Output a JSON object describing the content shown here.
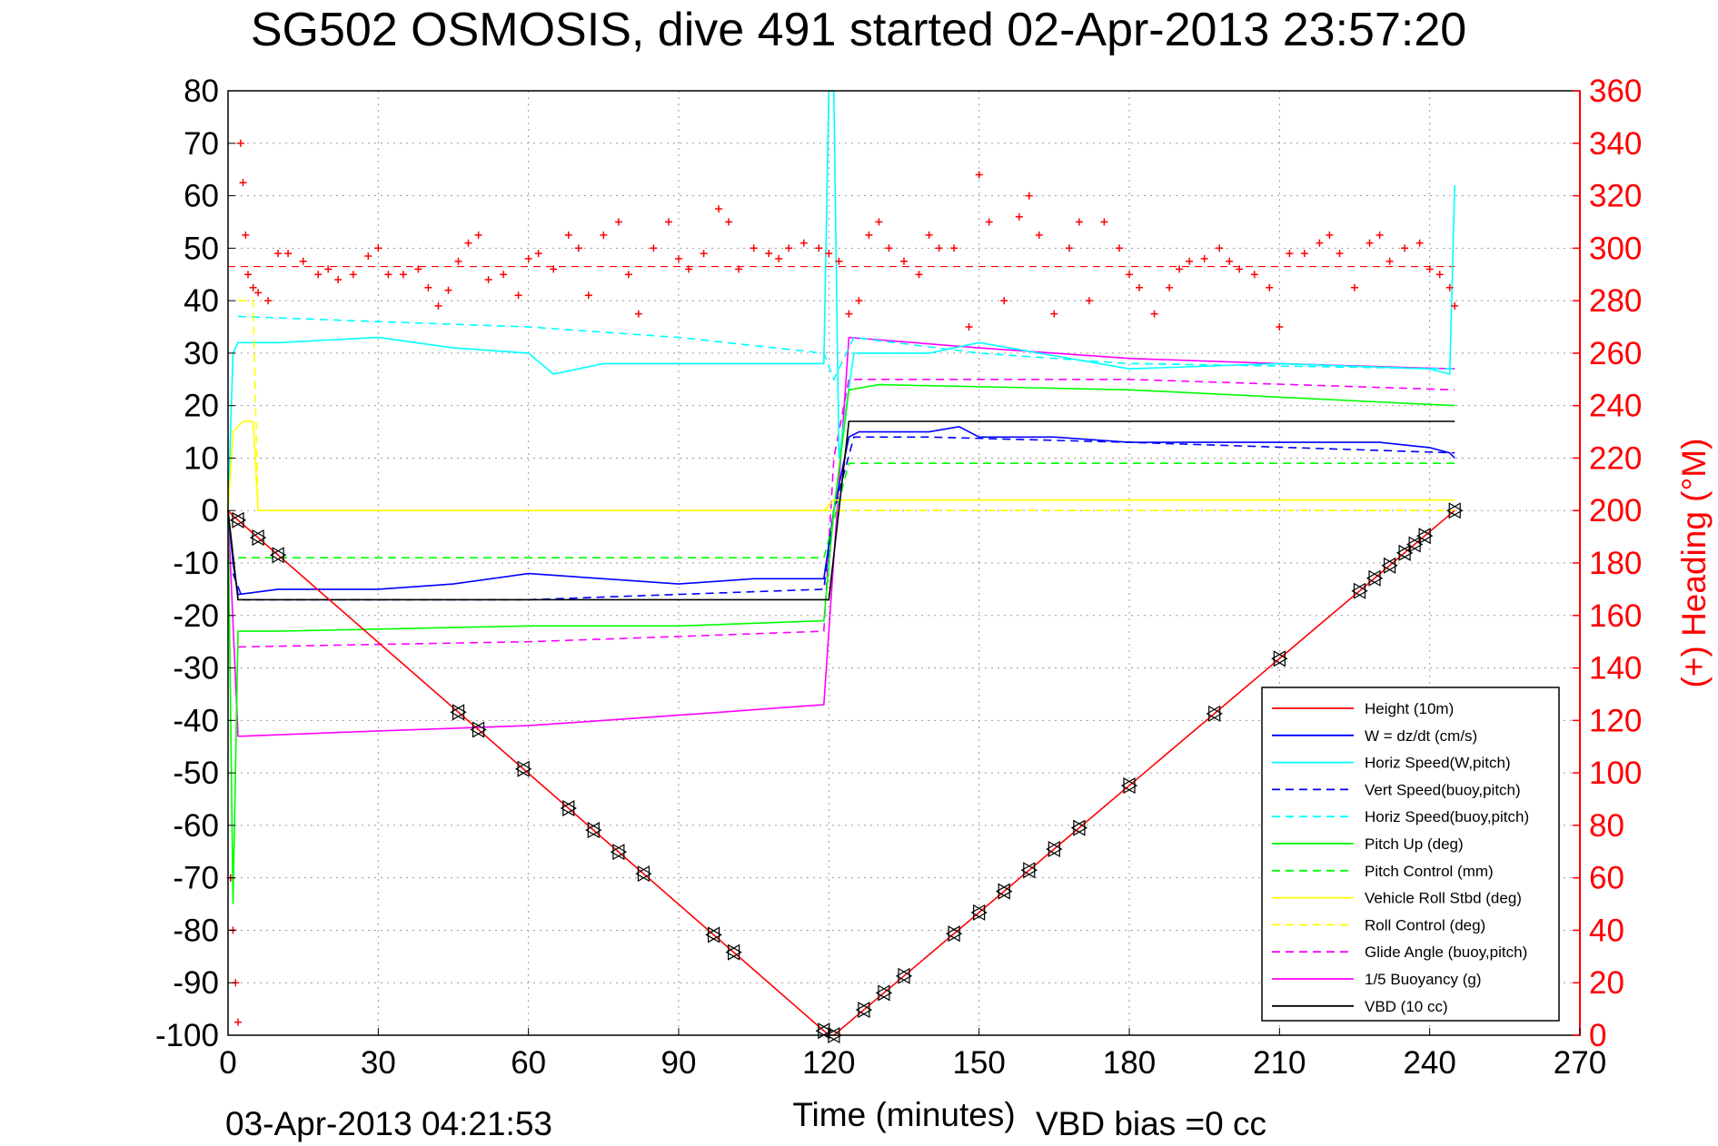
{
  "chart_data": {
    "type": "line",
    "title": "SG502 OSMOSIS, dive 491 started 02-Apr-2013 23:57:20",
    "xlabel": "Time (minutes)",
    "ylabel": "",
    "y2label": "(+) Heading (°M)",
    "footer_left": "03-Apr-2013 04:21:53",
    "footer_right": "VBD bias =0 cc",
    "xlim": [
      0,
      270
    ],
    "ylim": [
      -100,
      80
    ],
    "y2lim": [
      0,
      360
    ],
    "xticks": [
      "0",
      "30",
      "60",
      "90",
      "120",
      "150",
      "180",
      "210",
      "240",
      "270"
    ],
    "yticks": [
      "80",
      "70",
      "60",
      "50",
      "40",
      "30",
      "20",
      "10",
      "0",
      "-10",
      "-20",
      "-30",
      "-40",
      "-50",
      "-60",
      "-70",
      "-80",
      "-90",
      "-100"
    ],
    "y2ticks": [
      "360",
      "340",
      "320",
      "300",
      "280",
      "260",
      "240",
      "220",
      "200",
      "180",
      "160",
      "140",
      "120",
      "100",
      "80",
      "60",
      "40",
      "20",
      "0"
    ],
    "grid": true,
    "legend_position": "bottom-right",
    "colors": {
      "red": "#ff0000",
      "blue": "#0000ff",
      "cyan": "#00ffff",
      "green": "#00ff00",
      "yellow": "#ffff00",
      "magenta": "#ff00ff",
      "black": "#000000"
    },
    "series": [
      {
        "name": "Height (10m)",
        "color": "#ff0000",
        "style": "solid",
        "x": [
          0,
          1,
          120,
          121,
          245
        ],
        "y": [
          0,
          -1,
          -100,
          -100,
          0
        ]
      },
      {
        "name": "W = dz/dt (cm/s)",
        "color": "#0000ff",
        "style": "solid",
        "x": [
          0,
          1,
          2,
          10,
          30,
          45,
          60,
          75,
          90,
          105,
          119,
          121,
          124,
          126,
          140,
          146,
          150,
          165,
          180,
          210,
          230,
          240,
          244,
          245
        ],
        "y": [
          0,
          -10,
          -16,
          -15,
          -15,
          -14,
          -12,
          -13,
          -14,
          -13,
          -13,
          0,
          14,
          15,
          15,
          16,
          14,
          14,
          13,
          13,
          13,
          12,
          11,
          10
        ]
      },
      {
        "name": "Horiz Speed(W,pitch)",
        "color": "#00ffff",
        "style": "solid",
        "x": [
          0,
          1,
          2,
          10,
          30,
          45,
          60,
          65,
          75,
          90,
          105,
          119,
          120,
          121,
          122,
          125,
          140,
          150,
          180,
          210,
          240,
          244,
          245
        ],
        "y": [
          0,
          30,
          32,
          32,
          33,
          31,
          30,
          26,
          28,
          28,
          28,
          28,
          80,
          80,
          10,
          30,
          30,
          32,
          27,
          28,
          27,
          26,
          62
        ]
      },
      {
        "name": "Vert Speed(buoy,pitch)",
        "color": "#0000ff",
        "style": "dashed",
        "x": [
          1,
          3,
          60,
          119,
          121,
          125,
          140,
          180,
          245
        ],
        "y": [
          -12,
          -17,
          -17,
          -15,
          0,
          14,
          14,
          13,
          11
        ]
      },
      {
        "name": "Horiz Speed(buoy,pitch)",
        "color": "#00ffff",
        "style": "dashed",
        "x": [
          2,
          30,
          60,
          90,
          119,
          121,
          125,
          150,
          180,
          245
        ],
        "y": [
          37,
          36,
          35,
          33,
          30,
          25,
          33,
          30,
          28,
          27
        ]
      },
      {
        "name": "Pitch Up (deg)",
        "color": "#00ff00",
        "style": "solid",
        "x": [
          0,
          1,
          2,
          10,
          60,
          90,
          119,
          121,
          124,
          130,
          180,
          245
        ],
        "y": [
          0,
          -75,
          -23,
          -23,
          -22,
          -22,
          -21,
          0,
          23,
          24,
          23,
          20
        ]
      },
      {
        "name": "Pitch Control (mm)",
        "color": "#00ff00",
        "style": "dashed",
        "x": [
          2,
          119,
          119,
          124,
          124,
          245
        ],
        "y": [
          -9,
          -9,
          -9,
          9,
          9,
          9
        ]
      },
      {
        "name": "Vehicle Roll Stbd (deg)",
        "color": "#ffff00",
        "style": "solid",
        "x": [
          0,
          1,
          3,
          5,
          6,
          60,
          119,
          121,
          124,
          245
        ],
        "y": [
          0,
          15,
          17,
          17,
          0,
          0,
          0,
          2,
          2,
          2
        ]
      },
      {
        "name": "Roll Control (deg)",
        "color": "#ffff00",
        "style": "dashed",
        "x": [
          2,
          5,
          6,
          245
        ],
        "y": [
          40,
          40,
          0,
          0
        ]
      },
      {
        "name": "Glide Angle (buoy,pitch)",
        "color": "#ff00ff",
        "style": "dashed",
        "x": [
          2,
          60,
          90,
          119,
          121,
          124,
          180,
          245
        ],
        "y": [
          -26,
          -25,
          -24,
          -23,
          10,
          25,
          25,
          23
        ]
      },
      {
        "name": "1/5 Buoyancy (g)",
        "color": "#ff00ff",
        "style": "solid",
        "x": [
          0,
          2,
          3,
          30,
          60,
          90,
          119,
          124,
          150,
          180,
          210,
          245
        ],
        "y": [
          0,
          -43,
          -43,
          -42,
          -41,
          -39,
          -37,
          33,
          31,
          29,
          28,
          27
        ]
      },
      {
        "name": "VBD (10 cc)",
        "color": "#000000",
        "style": "solid",
        "x": [
          0,
          2,
          3,
          119,
          120,
          124,
          245
        ],
        "y": [
          0,
          -17,
          -17,
          -17,
          -17,
          17,
          17
        ]
      }
    ],
    "heading_mean": 293,
    "heading_series": {
      "name": "Heading",
      "color": "#ff0000",
      "marker": "+",
      "axis": "right",
      "x": [
        0.5,
        1,
        1.5,
        2,
        2.5,
        3,
        3.5,
        4,
        5,
        6,
        8,
        10,
        12,
        15,
        18,
        20,
        22,
        25,
        28,
        30,
        32,
        35,
        38,
        40,
        42,
        44,
        46,
        48,
        50,
        52,
        55,
        58,
        60,
        62,
        65,
        68,
        70,
        72,
        75,
        78,
        80,
        82,
        85,
        88,
        90,
        92,
        95,
        98,
        100,
        102,
        105,
        108,
        110,
        112,
        115,
        118,
        120,
        122,
        124,
        126,
        128,
        130,
        132,
        135,
        138,
        140,
        142,
        145,
        148,
        150,
        152,
        155,
        158,
        160,
        162,
        165,
        168,
        170,
        172,
        175,
        178,
        180,
        182,
        185,
        188,
        190,
        192,
        195,
        198,
        200,
        202,
        205,
        208,
        210,
        212,
        215,
        218,
        220,
        222,
        225,
        228,
        230,
        232,
        235,
        238,
        240,
        242,
        244,
        245
      ],
      "y": [
        60,
        40,
        20,
        5,
        340,
        325,
        305,
        290,
        285,
        283,
        280,
        298,
        298,
        295,
        290,
        292,
        288,
        290,
        297,
        300,
        290,
        290,
        292,
        285,
        278,
        284,
        295,
        302,
        305,
        288,
        290,
        282,
        296,
        298,
        292,
        305,
        300,
        282,
        305,
        310,
        290,
        275,
        300,
        310,
        296,
        292,
        298,
        315,
        310,
        292,
        300,
        298,
        296,
        300,
        302,
        300,
        298,
        295,
        275,
        280,
        305,
        310,
        300,
        295,
        290,
        305,
        300,
        300,
        270,
        328,
        310,
        280,
        312,
        320,
        305,
        275,
        300,
        310,
        280,
        310,
        300,
        290,
        285,
        275,
        285,
        292,
        295,
        296,
        300,
        295,
        292,
        290,
        285,
        270,
        298,
        298,
        302,
        305,
        298,
        285,
        302,
        305,
        295,
        300,
        302,
        292,
        290,
        285,
        278
      ]
    }
  }
}
